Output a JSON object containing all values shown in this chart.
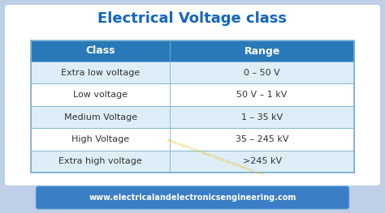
{
  "title": "Electrical Voltage class",
  "title_color": "#1565C0",
  "title_fontsize": 13,
  "header": [
    "Class",
    "Range"
  ],
  "rows": [
    [
      "Extra low voltage",
      "0 – 50 V"
    ],
    [
      "Low voltage",
      "50 V – 1 kV"
    ],
    [
      "Medium Voltage",
      "1 – 35 kV"
    ],
    [
      "High Voltage",
      "35 – 245 kV"
    ],
    [
      "Extra high voltage",
      ">245 kV"
    ]
  ],
  "header_bg": "#2979B8",
  "header_fg": "#FFFFFF",
  "row_bg_odd": "#DDEEF8",
  "row_bg_even": "#FFFFFF",
  "row_fg": "#333333",
  "border_color": "#7BAFD4",
  "outer_bg": "#BFCFE8",
  "inner_bg": "#FFFFFF",
  "footer_bg": "#3A7EC6",
  "footer_text": "www.electricalandelectronicsengineering.com",
  "footer_fg": "#FFFFFF",
  "watermark": "www.electricalandelectronicsengineering.com",
  "watermark_color": "#E8C020",
  "col_split": 0.43
}
